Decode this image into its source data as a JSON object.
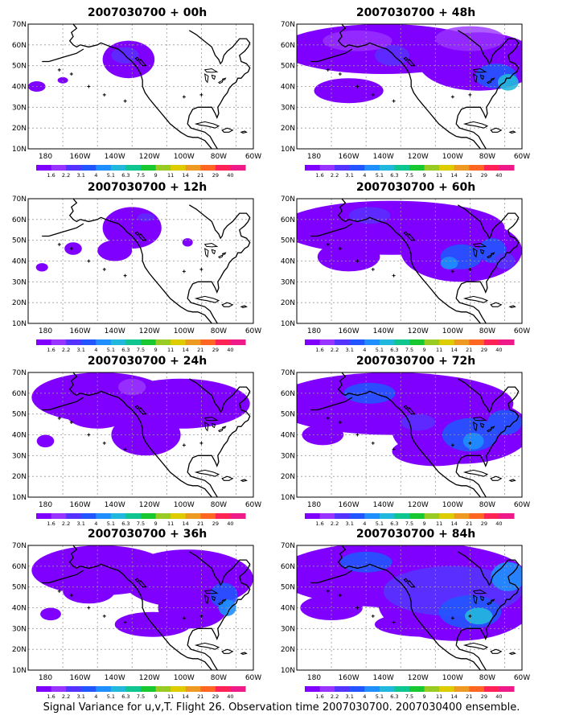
{
  "lat_labels": [
    "70N",
    "60N",
    "50N",
    "40N",
    "30N",
    "20N",
    "10N"
  ],
  "lon_labels": [
    "180",
    "160W",
    "140W",
    "120W",
    "100W",
    "80W",
    "60W"
  ],
  "colorbar": {
    "labels": [
      "1.6",
      "2.2",
      "3.1",
      "4",
      "5.1",
      "6.3",
      "7.5",
      "9",
      "11",
      "14",
      "21",
      "29",
      "40"
    ],
    "colors": [
      "#7f00ff",
      "#9933ff",
      "#5533ff",
      "#2255ff",
      "#1f8fff",
      "#22b8dd",
      "#10c690",
      "#18c830",
      "#99cc22",
      "#ddcc00",
      "#ee9922",
      "#ff6622",
      "#ff2255",
      "#ee1a8a"
    ]
  },
  "panels": [
    {
      "title": "2007030700 + 00h",
      "intensity": 0
    },
    {
      "title": "2007030700 + 12h",
      "intensity": 1
    },
    {
      "title": "2007030700 + 24h",
      "intensity": 2
    },
    {
      "title": "2007030700 + 36h",
      "intensity": 3
    },
    {
      "title": "2007030700 + 48h",
      "intensity": 4
    },
    {
      "title": "2007030700 + 60h",
      "intensity": 5
    },
    {
      "title": "2007030700 + 72h",
      "intensity": 6
    },
    {
      "title": "2007030700 + 84h",
      "intensity": 7
    }
  ],
  "footer": "Signal Variance for u,v,T. Flight 26. Observation time 2007030700. 2007030400 ensemble."
}
